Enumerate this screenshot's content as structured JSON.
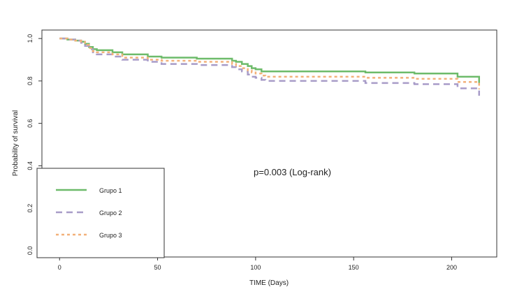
{
  "chart_data": {
    "type": "line",
    "title": "",
    "xlabel": "TIME (Days)",
    "ylabel": "Probability of survival",
    "xlim": [
      -9,
      223
    ],
    "ylim": [
      -0.03,
      1.04
    ],
    "x_ticks": [
      0,
      50,
      100,
      150,
      200
    ],
    "y_ticks": [
      0.0,
      0.2,
      0.4,
      0.6,
      0.8,
      1.0
    ],
    "x_tick_labels": [
      "0",
      "50",
      "100",
      "150",
      "200"
    ],
    "y_tick_labels": [
      "0.0",
      "0.2",
      "0.4",
      "0.6",
      "0.8",
      "1.0"
    ],
    "annotation": "p=0.003 (Log-rank)",
    "grid": false,
    "legend_position": "bottom-left",
    "series": [
      {
        "name": "Grupo 1",
        "color": "#6dbb6a",
        "dash": "solid",
        "steps": [
          [
            0,
            1.0
          ],
          [
            4,
            0.995
          ],
          [
            8,
            0.99
          ],
          [
            11,
            0.985
          ],
          [
            13,
            0.975
          ],
          [
            15,
            0.96
          ],
          [
            17,
            0.95
          ],
          [
            19,
            0.945
          ],
          [
            27,
            0.935
          ],
          [
            32,
            0.925
          ],
          [
            45,
            0.915
          ],
          [
            52,
            0.91
          ],
          [
            70,
            0.905
          ],
          [
            88,
            0.895
          ],
          [
            90,
            0.89
          ],
          [
            93,
            0.88
          ],
          [
            96,
            0.87
          ],
          [
            98,
            0.86
          ],
          [
            100,
            0.855
          ],
          [
            103,
            0.845
          ],
          [
            105,
            0.845
          ],
          [
            156,
            0.84
          ],
          [
            181,
            0.835
          ],
          [
            203,
            0.82
          ],
          [
            214,
            0.78
          ]
        ]
      },
      {
        "name": "Grupo 2",
        "color": "#a89cc8",
        "dash": "long",
        "steps": [
          [
            0,
            1.0
          ],
          [
            4,
            0.995
          ],
          [
            8,
            0.99
          ],
          [
            11,
            0.98
          ],
          [
            13,
            0.965
          ],
          [
            15,
            0.95
          ],
          [
            17,
            0.935
          ],
          [
            19,
            0.925
          ],
          [
            27,
            0.915
          ],
          [
            32,
            0.9
          ],
          [
            45,
            0.89
          ],
          [
            52,
            0.88
          ],
          [
            70,
            0.875
          ],
          [
            88,
            0.865
          ],
          [
            90,
            0.855
          ],
          [
            93,
            0.845
          ],
          [
            96,
            0.83
          ],
          [
            98,
            0.82
          ],
          [
            100,
            0.815
          ],
          [
            103,
            0.805
          ],
          [
            105,
            0.8
          ],
          [
            156,
            0.79
          ],
          [
            181,
            0.785
          ],
          [
            203,
            0.765
          ],
          [
            214,
            0.73
          ]
        ]
      },
      {
        "name": "Grupo 3",
        "color": "#f2b17a",
        "dash": "short",
        "steps": [
          [
            0,
            1.0
          ],
          [
            4,
            0.995
          ],
          [
            8,
            0.99
          ],
          [
            11,
            0.985
          ],
          [
            13,
            0.97
          ],
          [
            15,
            0.955
          ],
          [
            17,
            0.94
          ],
          [
            19,
            0.935
          ],
          [
            27,
            0.925
          ],
          [
            32,
            0.91
          ],
          [
            45,
            0.9
          ],
          [
            52,
            0.895
          ],
          [
            70,
            0.89
          ],
          [
            88,
            0.88
          ],
          [
            90,
            0.87
          ],
          [
            93,
            0.86
          ],
          [
            96,
            0.85
          ],
          [
            98,
            0.84
          ],
          [
            100,
            0.835
          ],
          [
            103,
            0.825
          ],
          [
            105,
            0.82
          ],
          [
            156,
            0.815
          ],
          [
            181,
            0.81
          ],
          [
            203,
            0.795
          ],
          [
            214,
            0.76
          ]
        ]
      }
    ]
  }
}
